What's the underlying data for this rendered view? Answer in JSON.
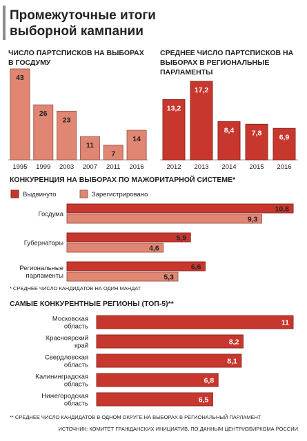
{
  "title": "Промежуточные итоги выборной кампании",
  "chart_data": [
    {
      "type": "bar",
      "title": "ЧИСЛО ПАРТСПИСКОВ НА ВЫБОРАХ В ГОСДУМУ",
      "categories": [
        "1995",
        "1999",
        "2003",
        "2007",
        "2011",
        "2016"
      ],
      "values": [
        43,
        26,
        23,
        11,
        7,
        14
      ],
      "color": "#e08672"
    },
    {
      "type": "bar",
      "title": "СРЕДНЕЕ ЧИСЛО ПАРТСПИСКОВ НА ВЫБОРАХ В РЕГИОНАЛЬНЫЕ ПАРЛАМЕНТЫ",
      "categories": [
        "2012",
        "2013",
        "2014",
        "2015",
        "2016"
      ],
      "values": [
        13.2,
        17.2,
        8.4,
        7.8,
        6.9
      ],
      "value_labels": [
        "13,2",
        "17,2",
        "8,4",
        "7,8",
        "6,9"
      ],
      "color": "#c8372d"
    },
    {
      "type": "hbar",
      "title": "КОНКУРЕНЦИЯ НА ВЫБОРАХ ПО МАЖОРИТАРНОЙ СИСТЕМЕ*",
      "categories": [
        "Госдума",
        "Губернаторы",
        "Региональные парламенты"
      ],
      "series": [
        {
          "name": "Выдвинуто",
          "color": "#c8372d",
          "values": [
            10.8,
            5.9,
            6.6
          ],
          "value_labels": [
            "10,8",
            "5,9",
            "6,6"
          ]
        },
        {
          "name": "Зарегистрировано",
          "color": "#e08672",
          "values": [
            9.3,
            4.6,
            5.3
          ],
          "value_labels": [
            "9,3",
            "4,6",
            "5,3"
          ]
        }
      ],
      "legend": "top",
      "note": "* СРЕДНЕЕ ЧИСЛО КАНДИДАТОВ НА ОДИН МАНДАТ"
    },
    {
      "type": "hbar",
      "title": "САМЫЕ КОНКУРЕНТНЫЕ РЕГИОНЫ (ТОП-5)**",
      "categories": [
        "Московская область",
        "Красноярский край",
        "Свердловская область",
        "Калининградская область",
        "Нижегородская область"
      ],
      "values": [
        11,
        8.2,
        8.1,
        6.8,
        6.5
      ],
      "value_labels": [
        "11",
        "8,2",
        "8,1",
        "6,8",
        "6,5"
      ],
      "color": "#c8372d",
      "note": "** СРЕДНЕЕ ЧИСЛО КАНДИДАТОВ В ОДНОМ ОКРУГЕ НА ВЫБОРАХ В РЕГИОНАЛЬНЫЙ ПАРЛАМЕНТ"
    }
  ],
  "source": "ИСТОЧНИК: КОМИТЕТ ГРАЖДАНСКИХ ИНИЦИАТИВ, ПО ДАННЫМ ЦЕНТРИЗБИРКОМА РОССИИ"
}
